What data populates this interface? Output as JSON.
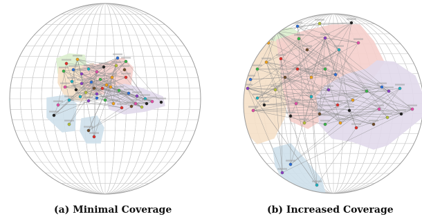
{
  "captions": {
    "a": "(a) Minimal Coverage",
    "b": "(b) Increased Coverage"
  },
  "colors": {
    "grid": "#c8c8c8",
    "globe_outline": "#9a9a9a",
    "edge": "#8a8a8a",
    "region_orange": "#f6e0c8",
    "region_red": "#f6d0cc",
    "region_purple": "#e2daec",
    "region_blue": "#cfe0ec",
    "region_green": "#dcefcf",
    "node_palette": [
      "#e0312c",
      "#f0a21c",
      "#3bb54a",
      "#2d6fd6",
      "#8a3fc4",
      "#1fb1c0",
      "#e34fa8",
      "#222222",
      "#b5c13a",
      "#6e4c2a"
    ]
  }
}
